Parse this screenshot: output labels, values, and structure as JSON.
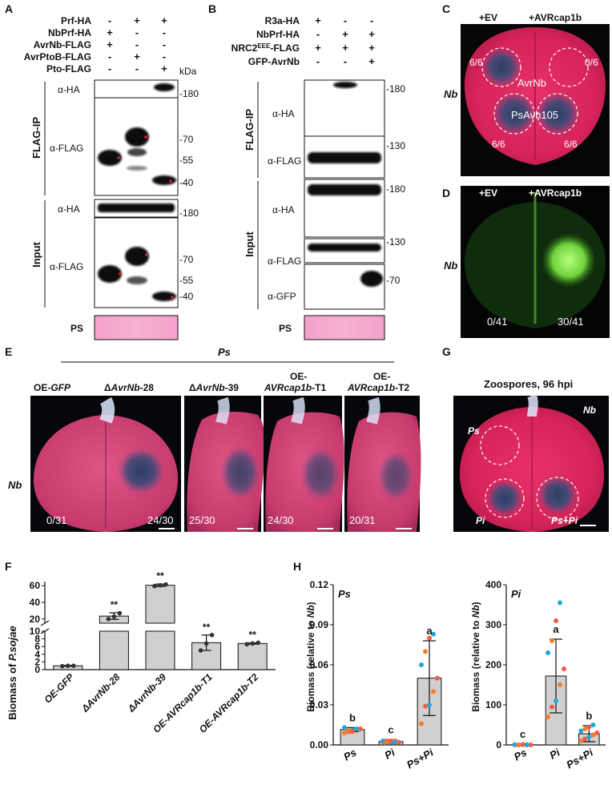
{
  "panels": {
    "A": "A",
    "B": "B",
    "C": "C",
    "D": "D",
    "E": "E",
    "F": "F",
    "G": "G",
    "H": "H"
  },
  "panelA": {
    "rows": [
      {
        "label": "Prf-HA",
        "vals": [
          "-",
          "+",
          "+"
        ]
      },
      {
        "label": "NbPrf-HA",
        "vals": [
          "+",
          "-",
          "-"
        ]
      },
      {
        "label": "AvrNb-FLAG",
        "vals": [
          "+",
          "-",
          "-"
        ]
      },
      {
        "label": "AvrPtoB-FLAG",
        "vals": [
          "-",
          "+",
          "-"
        ]
      },
      {
        "label": "Pto-FLAG",
        "vals": [
          "-",
          "-",
          "+"
        ]
      }
    ],
    "kda": "kDa",
    "ip_label": "FLAG-IP",
    "input_label": "Input",
    "blot_ha": "α-HA",
    "blot_flag": "α-FLAG",
    "ps": "PS",
    "markers": {
      "m180a": "-180",
      "m70a": "-70",
      "m55a": "-55",
      "m40a": "-40",
      "m180b": "-180",
      "m70b": "-70",
      "m55b": "-55",
      "m40b": "-40"
    }
  },
  "panelB": {
    "rows": [
      {
        "label": "R3a-HA",
        "vals": [
          "+",
          "-",
          "-"
        ]
      },
      {
        "label": "NbPrf-HA",
        "vals": [
          "-",
          "+",
          "+"
        ]
      },
      {
        "label": "NRC2",
        "sup": "EEE",
        "suffix": "-FLAG",
        "vals": [
          "+",
          "+",
          "+"
        ]
      },
      {
        "label": "GFP-AvrNb",
        "vals": [
          "-",
          "-",
          "+"
        ]
      }
    ],
    "kda": "kDa",
    "ip_label": "FLAG-IP",
    "input_label": "Input",
    "blot_ha": "α-HA",
    "blot_flag": "α-FLAG",
    "blot_gfp": "α-GFP",
    "ps": "PS",
    "markers": {
      "m180a": "-180",
      "m130a": "-130",
      "m180b": "-180",
      "m130b": "-130",
      "m70": "-70"
    }
  },
  "panelC": {
    "left": "+EV",
    "right": "+AVRcap1b",
    "species": "Nb",
    "tl": "6/6",
    "tr": "0/6",
    "bl": "6/6",
    "br": "6/6",
    "spot1": "AvrNb",
    "spot2": "PsAvh105"
  },
  "panelD": {
    "left": "+EV",
    "right": "+AVRcap1b",
    "species": "Nb",
    "bl": "0/41",
    "br": "30/41"
  },
  "panelE": {
    "header": "Ps",
    "species": "Nb",
    "labels": {
      "l1": "OE-",
      "l1i": "GFP",
      "l2pre": "Δ",
      "l2i": "AvrNb",
      "l2suf": "-28",
      "l3pre": "Δ",
      "l3i": "AvrNb",
      "l3suf": "-39",
      "l4a": "OE-",
      "l4i": "AVRcap1b",
      "l4suf": "-T1",
      "l5a": "OE-",
      "l5i": "AVRcap1b",
      "l5suf": "-T2"
    },
    "counts": [
      "0/31",
      "24/30",
      "25/30",
      "24/30",
      "20/31"
    ]
  },
  "panelG": {
    "title": "Zoospores, 96 hpi",
    "species": "Nb",
    "ps": "Ps",
    "pi": "Pi",
    "pspi": "Ps+Pi"
  },
  "panelF": {
    "ylabel_pre": "Biomass of ",
    "ylabel_i": "P.sojae",
    "sig": "**"
  },
  "panelH": {
    "ylabel_pre": "Biomass (relative to ",
    "ylabel_i": "Nb",
    "ylabel_suf": ")"
  },
  "chart_data": [
    {
      "type": "bar",
      "panel": "F",
      "categories": [
        "OE-GFP",
        "ΔAvrNb-28",
        "ΔAvrNb-39",
        "OE-AVRcap1b-T1",
        "OE-AVRcap1b-T2"
      ],
      "values": [
        1,
        23.5,
        60.5,
        7,
        6.8
      ],
      "errors": [
        0.1,
        4,
        1.5,
        2,
        0.15
      ],
      "points": [
        [
          0.9,
          1,
          1
        ],
        [
          20,
          23,
          27
        ],
        [
          59.5,
          60.5,
          61.5
        ],
        [
          5,
          6.8,
          9
        ],
        [
          6.6,
          6.8,
          7
        ]
      ],
      "significance": [
        "",
        "**",
        "**",
        "**",
        "**"
      ],
      "broken_axis": {
        "lower": [
          0,
          10
        ],
        "upper": [
          15,
          65
        ]
      },
      "yticks_lower": [
        0,
        2,
        4,
        6,
        8,
        10
      ],
      "yticks_upper": [
        20,
        40,
        60
      ]
    },
    {
      "type": "bar",
      "panel": "H-Ps",
      "title": "Ps",
      "categories": [
        "Ps",
        "Pi",
        "Ps+Pi"
      ],
      "values": [
        0.0115,
        0.0025,
        0.05
      ],
      "errors": [
        0.0015,
        0.0015,
        0.028
      ],
      "letters": [
        "b",
        "c",
        "a"
      ],
      "ylim": [
        0,
        0.12
      ],
      "yticks": [
        "0.00",
        "0.03",
        "0.06",
        "0.09",
        "0.12"
      ],
      "points": [
        [
          0.009,
          0.01,
          0.011,
          0.012,
          0.012,
          0.013,
          0.011,
          0.01,
          0.012
        ],
        [
          0.002,
          0.003,
          0.002,
          0.003,
          0.002,
          0.003,
          0.002,
          0.003,
          0.002
        ],
        [
          0.016,
          0.029,
          0.03,
          0.04,
          0.05,
          0.06,
          0.07,
          0.08,
          0.083
        ]
      ]
    },
    {
      "type": "bar",
      "panel": "H-Pi",
      "title": "Pi",
      "categories": [
        "Ps",
        "Pi",
        "Ps+Pi"
      ],
      "values": [
        1,
        172,
        28
      ],
      "errors": [
        1,
        92,
        20
      ],
      "letters": [
        "c",
        "a",
        "b"
      ],
      "ylim": [
        0,
        400
      ],
      "yticks": [
        "0",
        "100",
        "200",
        "300",
        "400"
      ],
      "points": [
        [
          0,
          0,
          1,
          1,
          0,
          1,
          0,
          1,
          0
        ],
        [
          70,
          95,
          110,
          150,
          190,
          230,
          260,
          310,
          355
        ],
        [
          10,
          15,
          20,
          25,
          30,
          35,
          40,
          45,
          50
        ]
      ]
    }
  ]
}
